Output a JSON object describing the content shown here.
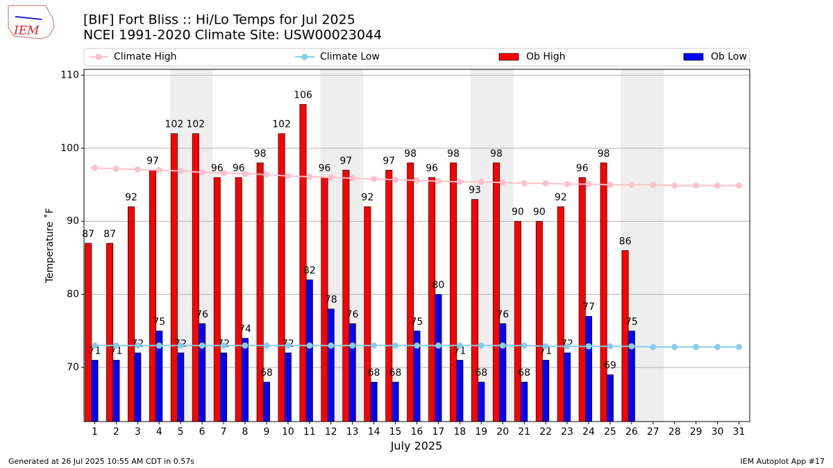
{
  "chart_data": {
    "type": "bar",
    "title": "[BIF] Fort Bliss :: Hi/Lo Temps for Jul 2025",
    "subtitle": "NCEI 1991-2020 Climate Site: USW00023044",
    "logo_text": "IEM",
    "ylabel": "Temperature ˚F",
    "xlabel": "July 2025",
    "footer_left": "Generated at 26 Jul 2025 10:55 AM CDT in 0.57s",
    "footer_right": "IEM Autoplot App #17",
    "x": [
      1,
      2,
      3,
      4,
      5,
      6,
      7,
      8,
      9,
      10,
      11,
      12,
      13,
      14,
      15,
      16,
      17,
      18,
      19,
      20,
      21,
      22,
      23,
      24,
      25,
      26,
      27,
      28,
      29,
      30,
      31
    ],
    "xlim": [
      0.5,
      31.5
    ],
    "ylim": [
      62.6,
      110.8
    ],
    "yticks": [
      70,
      80,
      90,
      100,
      110
    ],
    "grid": true,
    "weekend_days": [
      5,
      6,
      12,
      13,
      19,
      20,
      26,
      27
    ],
    "series": [
      {
        "name": "Climate High",
        "kind": "line",
        "color": "#ffc0cb",
        "values": [
          97.3,
          97.2,
          97.1,
          97.0,
          96.9,
          96.7,
          96.6,
          96.5,
          96.4,
          96.2,
          96.1,
          96.0,
          95.9,
          95.8,
          95.7,
          95.6,
          95.5,
          95.4,
          95.4,
          95.3,
          95.2,
          95.2,
          95.1,
          95.1,
          95.0,
          95.0,
          95.0,
          94.9,
          94.9,
          94.9,
          94.9
        ]
      },
      {
        "name": "Climate Low",
        "kind": "line",
        "color": "#87ceeb",
        "values": [
          73.0,
          73.0,
          73.0,
          73.0,
          73.0,
          73.0,
          73.0,
          73.0,
          73.0,
          73.0,
          73.0,
          73.0,
          73.0,
          73.0,
          73.0,
          73.0,
          73.0,
          73.0,
          73.0,
          73.0,
          73.0,
          72.9,
          72.9,
          72.9,
          72.9,
          72.9,
          72.8,
          72.8,
          72.8,
          72.8,
          72.8
        ]
      },
      {
        "name": "Ob High",
        "kind": "bar",
        "color": "#ff0000",
        "values": [
          87,
          87,
          92,
          97,
          102,
          102,
          96,
          96,
          98,
          102,
          106,
          96,
          97,
          92,
          97,
          98,
          96,
          98,
          93,
          98,
          90,
          90,
          92,
          96,
          98,
          86,
          null,
          null,
          null,
          null,
          null
        ]
      },
      {
        "name": "Ob Low",
        "kind": "bar",
        "color": "#0000ff",
        "values": [
          71,
          71,
          72,
          75,
          72,
          76,
          72,
          74,
          68,
          72,
          82,
          78,
          76,
          68,
          68,
          75,
          80,
          71,
          68,
          76,
          68,
          71,
          72,
          77,
          69,
          75,
          null,
          null,
          null,
          null,
          null
        ]
      }
    ]
  }
}
